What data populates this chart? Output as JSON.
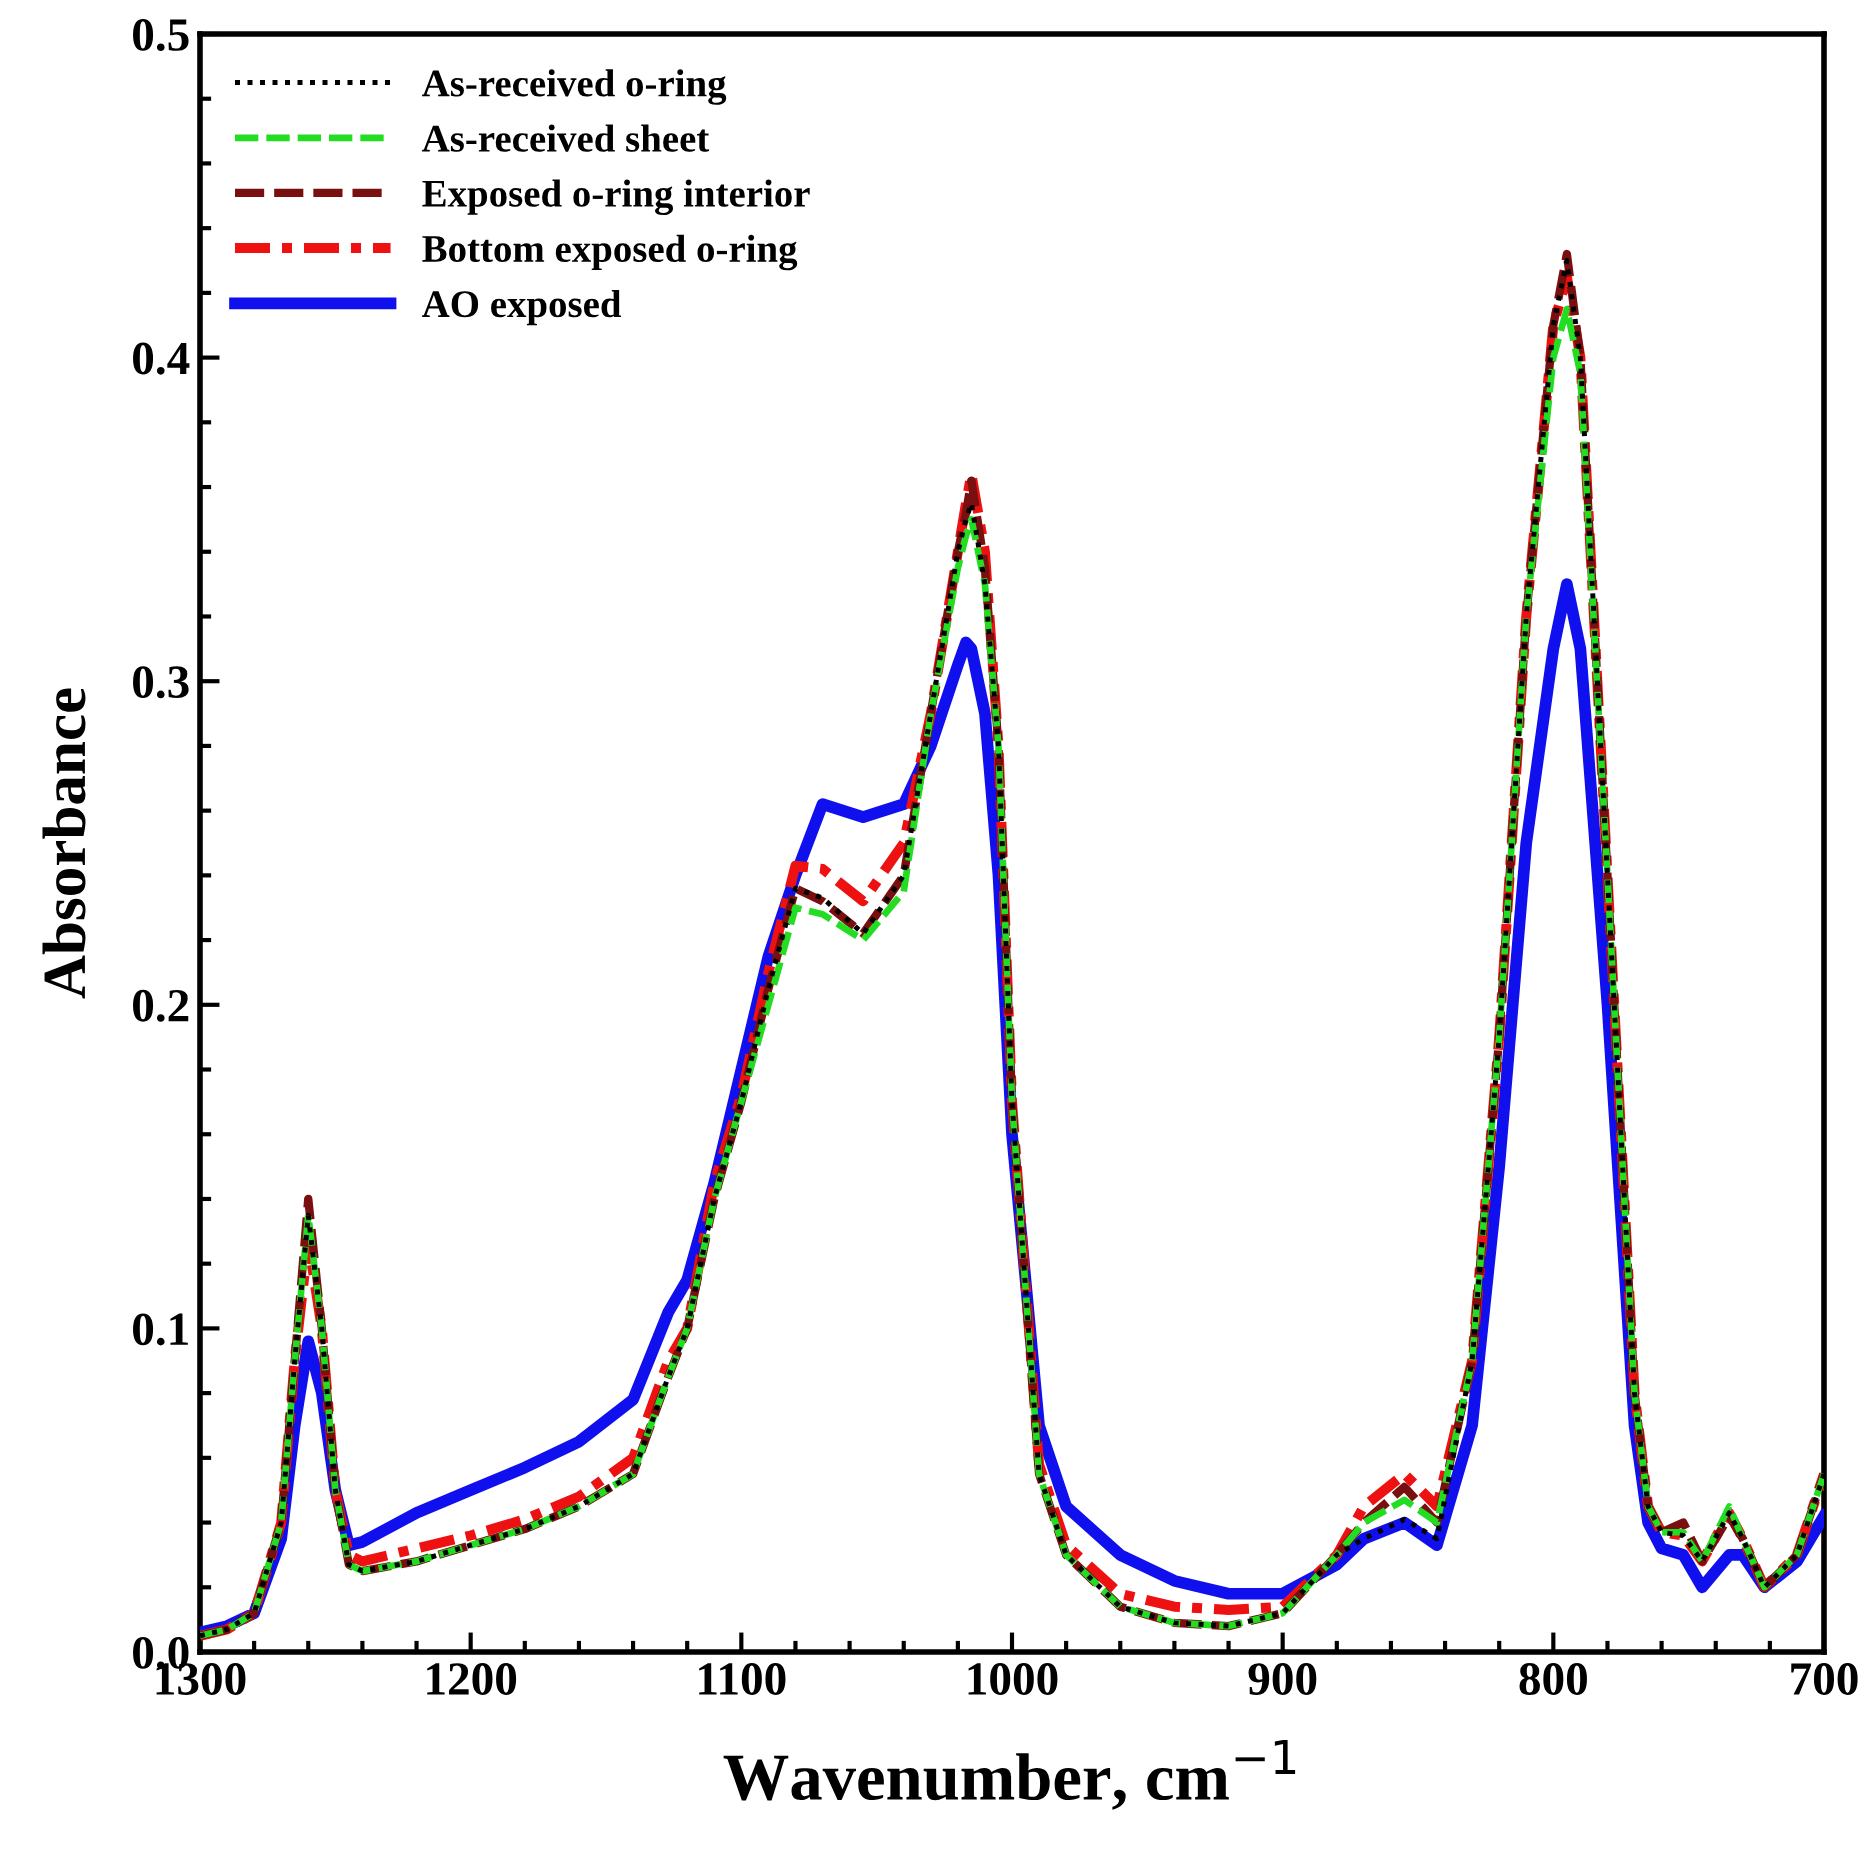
{
  "chart_data": {
    "type": "line",
    "xlabel": "Wavenumber, cm$^{−1}$",
    "ylabel": "Absorbance",
    "x": [
      1300,
      1290,
      1280,
      1270,
      1265,
      1260,
      1255,
      1250,
      1245,
      1240,
      1220,
      1200,
      1180,
      1160,
      1140,
      1127,
      1120,
      1110,
      1100,
      1090,
      1080,
      1070,
      1055,
      1040,
      1030,
      1020,
      1017,
      1015,
      1010,
      1005,
      1000,
      990,
      980,
      960,
      940,
      920,
      900,
      880,
      870,
      855,
      843,
      830,
      820,
      810,
      800,
      795,
      790,
      780,
      770,
      765,
      760,
      752,
      745,
      735,
      730,
      722,
      710,
      700
    ],
    "xlim": [
      1300,
      700
    ],
    "xticks": [
      1300,
      1200,
      1100,
      1000,
      900,
      800,
      700
    ],
    "ylim": [
      0,
      0.5
    ],
    "yticks": [
      {
        "value": 0,
        "label": "0.0"
      },
      0.1,
      0.2,
      0.3,
      0.4,
      0.5
    ],
    "legend": "top left",
    "grid": false,
    "series": [
      {
        "name": "As-received o-ring",
        "color": "#000000",
        "line_style": "dotted",
        "values": [
          0.005,
          0.007,
          0.012,
          0.04,
          0.09,
          0.135,
          0.1,
          0.05,
          0.027,
          0.025,
          0.028,
          0.033,
          0.038,
          0.045,
          0.055,
          0.085,
          0.1,
          0.14,
          0.17,
          0.205,
          0.236,
          0.233,
          0.222,
          0.24,
          0.29,
          0.34,
          0.35,
          0.355,
          0.33,
          0.28,
          0.17,
          0.055,
          0.03,
          0.014,
          0.009,
          0.008,
          0.012,
          0.03,
          0.035,
          0.041,
          0.035,
          0.09,
          0.19,
          0.32,
          0.41,
          0.43,
          0.4,
          0.24,
          0.08,
          0.045,
          0.037,
          0.036,
          0.028,
          0.043,
          0.035,
          0.02,
          0.03,
          0.055
        ]
      },
      {
        "name": "As-received sheet",
        "color": "#22dd22",
        "line_style": "dashed",
        "values": [
          0.005,
          0.007,
          0.012,
          0.04,
          0.09,
          0.135,
          0.1,
          0.05,
          0.027,
          0.025,
          0.028,
          0.033,
          0.038,
          0.045,
          0.055,
          0.085,
          0.1,
          0.14,
          0.17,
          0.2,
          0.23,
          0.228,
          0.22,
          0.235,
          0.29,
          0.335,
          0.345,
          0.35,
          0.33,
          0.28,
          0.17,
          0.055,
          0.03,
          0.014,
          0.009,
          0.008,
          0.012,
          0.03,
          0.04,
          0.047,
          0.04,
          0.09,
          0.19,
          0.32,
          0.4,
          0.415,
          0.395,
          0.24,
          0.08,
          0.045,
          0.037,
          0.037,
          0.028,
          0.045,
          0.035,
          0.02,
          0.03,
          0.055
        ]
      },
      {
        "name": "Exposed o-ring interior",
        "color": "#7a0f0f",
        "line_style": "dashed",
        "values": [
          0.005,
          0.007,
          0.012,
          0.04,
          0.09,
          0.14,
          0.1,
          0.05,
          0.027,
          0.025,
          0.028,
          0.033,
          0.038,
          0.045,
          0.055,
          0.085,
          0.1,
          0.14,
          0.17,
          0.205,
          0.236,
          0.232,
          0.222,
          0.24,
          0.29,
          0.34,
          0.352,
          0.362,
          0.335,
          0.28,
          0.17,
          0.055,
          0.03,
          0.014,
          0.009,
          0.008,
          0.012,
          0.03,
          0.04,
          0.051,
          0.04,
          0.09,
          0.19,
          0.32,
          0.41,
          0.432,
          0.4,
          0.24,
          0.08,
          0.045,
          0.037,
          0.04,
          0.028,
          0.042,
          0.035,
          0.02,
          0.03,
          0.055
        ]
      },
      {
        "name": "Bottom exposed o-ring",
        "color": "#ee1111",
        "line_style": "dashdot",
        "values": [
          0.005,
          0.007,
          0.012,
          0.04,
          0.09,
          0.127,
          0.1,
          0.05,
          0.03,
          0.028,
          0.032,
          0.036,
          0.041,
          0.048,
          0.06,
          0.09,
          0.1,
          0.145,
          0.172,
          0.21,
          0.243,
          0.242,
          0.232,
          0.25,
          0.29,
          0.34,
          0.355,
          0.364,
          0.34,
          0.28,
          0.17,
          0.058,
          0.033,
          0.018,
          0.014,
          0.013,
          0.014,
          0.03,
          0.045,
          0.055,
          0.045,
          0.09,
          0.19,
          0.32,
          0.41,
          0.425,
          0.4,
          0.24,
          0.08,
          0.045,
          0.037,
          0.036,
          0.028,
          0.043,
          0.035,
          0.02,
          0.03,
          0.055
        ]
      },
      {
        "name": "AO exposed",
        "color": "#1010ee",
        "line_style": "solid",
        "values": [
          0.006,
          0.008,
          0.012,
          0.035,
          0.07,
          0.096,
          0.08,
          0.05,
          0.033,
          0.034,
          0.043,
          0.05,
          0.057,
          0.065,
          0.078,
          0.105,
          0.115,
          0.145,
          0.18,
          0.215,
          0.24,
          0.262,
          0.258,
          0.262,
          0.28,
          0.305,
          0.312,
          0.31,
          0.29,
          0.24,
          0.16,
          0.07,
          0.045,
          0.03,
          0.022,
          0.018,
          0.018,
          0.027,
          0.035,
          0.04,
          0.033,
          0.07,
          0.15,
          0.25,
          0.31,
          0.33,
          0.31,
          0.2,
          0.07,
          0.04,
          0.032,
          0.03,
          0.02,
          0.03,
          0.03,
          0.02,
          0.028,
          0.042
        ]
      }
    ]
  }
}
